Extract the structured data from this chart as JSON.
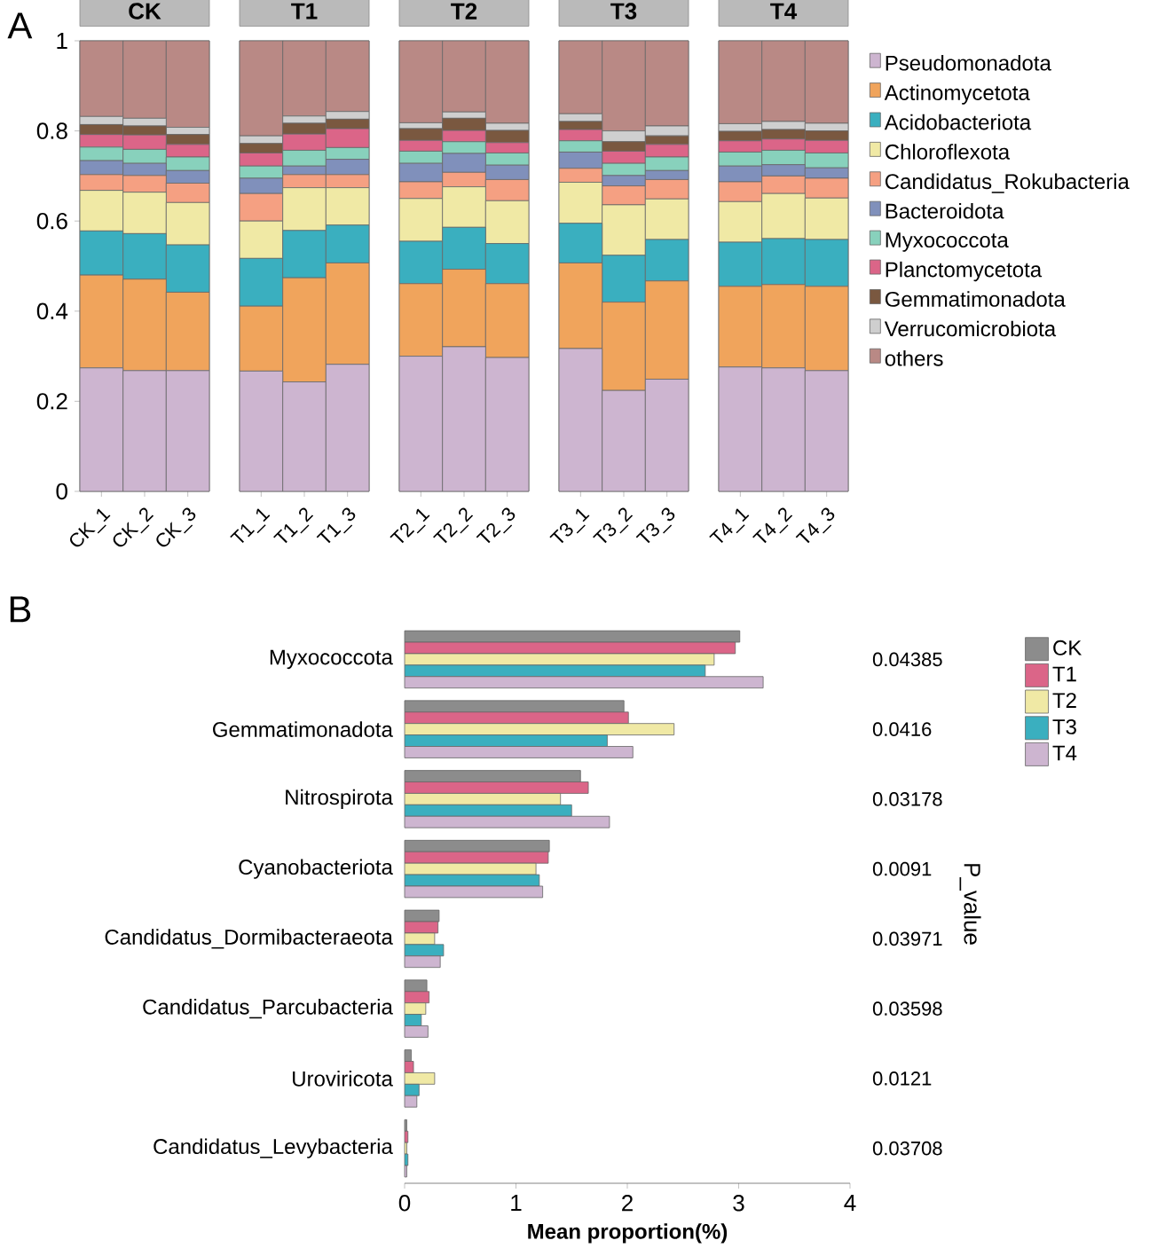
{
  "chart_data": [
    {
      "type": "bar",
      "stacked": true,
      "title": "CK",
      "annotations": [
        "A"
      ],
      "categories": [
        "CK_1",
        "CK_2",
        "CK_3"
      ],
      "ylim": [
        0,
        1
      ],
      "yticks": [
        0,
        0.2,
        0.4,
        0.6,
        0.8,
        1
      ],
      "series": [
        {
          "color": "#cdb5d0",
          "values": [
            0.274,
            0.268,
            0.268
          ]
        },
        {
          "color": "#f0a45c",
          "values": [
            0.206,
            0.203,
            0.174
          ]
        },
        {
          "color": "#3aafbf",
          "values": [
            0.098,
            0.101,
            0.105
          ]
        },
        {
          "color": "#f0e9a5",
          "values": [
            0.09,
            0.092,
            0.094
          ]
        },
        {
          "color": "#f5a082",
          "values": [
            0.035,
            0.037,
            0.043
          ]
        },
        {
          "color": "#8090bb",
          "values": [
            0.031,
            0.027,
            0.028
          ]
        },
        {
          "color": "#88d1bc",
          "values": [
            0.03,
            0.031,
            0.03
          ]
        },
        {
          "color": "#db6588",
          "values": [
            0.028,
            0.032,
            0.028
          ]
        },
        {
          "color": "#7a5840",
          "values": [
            0.022,
            0.02,
            0.022
          ]
        },
        {
          "color": "#cfcfcf",
          "values": [
            0.018,
            0.017,
            0.016
          ]
        },
        {
          "color": "#b98985",
          "values": [
            0.168,
            0.172,
            0.192
          ]
        }
      ]
    },
    {
      "type": "bar",
      "stacked": true,
      "title": "T1",
      "categories": [
        "T1_1",
        "T1_2",
        "T1_3"
      ],
      "ylim": [
        0,
        1
      ],
      "tick_labels": "x",
      "series": [
        {
          "color": "#cdb5d0",
          "values": [
            0.267,
            0.243,
            0.282
          ]
        },
        {
          "color": "#f0a45c",
          "values": [
            0.144,
            0.231,
            0.225
          ]
        },
        {
          "color": "#3aafbf",
          "values": [
            0.106,
            0.105,
            0.084
          ]
        },
        {
          "color": "#f0e9a5",
          "values": [
            0.083,
            0.095,
            0.083
          ]
        },
        {
          "color": "#f5a082",
          "values": [
            0.061,
            0.029,
            0.029
          ]
        },
        {
          "color": "#8090bb",
          "values": [
            0.034,
            0.019,
            0.034
          ]
        },
        {
          "color": "#88d1bc",
          "values": [
            0.027,
            0.035,
            0.026
          ]
        },
        {
          "color": "#db6588",
          "values": [
            0.029,
            0.036,
            0.042
          ]
        },
        {
          "color": "#7a5840",
          "values": [
            0.021,
            0.024,
            0.021
          ]
        },
        {
          "color": "#cfcfcf",
          "values": [
            0.017,
            0.016,
            0.017
          ]
        },
        {
          "color": "#b98985",
          "values": [
            0.211,
            0.167,
            0.157
          ]
        }
      ]
    },
    {
      "type": "bar",
      "stacked": true,
      "title": "T2",
      "categories": [
        "T2_1",
        "T2_2",
        "T2_3"
      ],
      "ylim": [
        0,
        1
      ],
      "tick_labels": "x",
      "series": [
        {
          "color": "#cdb5d0",
          "values": [
            0.3,
            0.321,
            0.297
          ]
        },
        {
          "color": "#f0a45c",
          "values": [
            0.161,
            0.172,
            0.164
          ]
        },
        {
          "color": "#3aafbf",
          "values": [
            0.094,
            0.093,
            0.089
          ]
        },
        {
          "color": "#f0e9a5",
          "values": [
            0.095,
            0.09,
            0.095
          ]
        },
        {
          "color": "#f5a082",
          "values": [
            0.037,
            0.032,
            0.047
          ]
        },
        {
          "color": "#8090bb",
          "values": [
            0.041,
            0.042,
            0.032
          ]
        },
        {
          "color": "#88d1bc",
          "values": [
            0.027,
            0.026,
            0.027
          ]
        },
        {
          "color": "#db6588",
          "values": [
            0.024,
            0.025,
            0.023
          ]
        },
        {
          "color": "#7a5840",
          "values": [
            0.026,
            0.027,
            0.027
          ]
        },
        {
          "color": "#cfcfcf",
          "values": [
            0.013,
            0.014,
            0.016
          ]
        },
        {
          "color": "#b98985",
          "values": [
            0.182,
            0.158,
            0.183
          ]
        }
      ]
    },
    {
      "type": "bar",
      "stacked": true,
      "title": "T3",
      "categories": [
        "T3_1",
        "T3_2",
        "T3_3"
      ],
      "ylim": [
        0,
        1
      ],
      "tick_labels": "x",
      "series": [
        {
          "color": "#cdb5d0",
          "values": [
            0.317,
            0.224,
            0.249
          ]
        },
        {
          "color": "#f0a45c",
          "values": [
            0.19,
            0.196,
            0.218
          ]
        },
        {
          "color": "#3aafbf",
          "values": [
            0.088,
            0.104,
            0.092
          ]
        },
        {
          "color": "#f0e9a5",
          "values": [
            0.091,
            0.112,
            0.09
          ]
        },
        {
          "color": "#f5a082",
          "values": [
            0.031,
            0.042,
            0.043
          ]
        },
        {
          "color": "#8090bb",
          "values": [
            0.036,
            0.023,
            0.02
          ]
        },
        {
          "color": "#88d1bc",
          "values": [
            0.025,
            0.027,
            0.03
          ]
        },
        {
          "color": "#db6588",
          "values": [
            0.025,
            0.027,
            0.028
          ]
        },
        {
          "color": "#7a5840",
          "values": [
            0.018,
            0.021,
            0.019
          ]
        },
        {
          "color": "#cfcfcf",
          "values": [
            0.017,
            0.024,
            0.022
          ]
        },
        {
          "color": "#b98985",
          "values": [
            0.162,
            0.2,
            0.189
          ]
        }
      ]
    },
    {
      "type": "bar",
      "stacked": true,
      "title": "T4",
      "categories": [
        "T4_1",
        "T4_2",
        "T4_3"
      ],
      "ylim": [
        0,
        1
      ],
      "tick_labels": "x",
      "legend": "right",
      "series": [
        {
          "name": "Pseudomonadota",
          "color": "#cdb5d0",
          "values": [
            0.276,
            0.274,
            0.268
          ]
        },
        {
          "name": "Actinomycetota",
          "color": "#f0a45c",
          "values": [
            0.179,
            0.185,
            0.187
          ]
        },
        {
          "name": "Acidobacteriota",
          "color": "#3aafbf",
          "values": [
            0.098,
            0.102,
            0.104
          ]
        },
        {
          "name": "Chloroflexota",
          "color": "#f0e9a5",
          "values": [
            0.09,
            0.1,
            0.092
          ]
        },
        {
          "name": "Candidatus_Rokubacteria",
          "color": "#f5a082",
          "values": [
            0.044,
            0.039,
            0.044
          ]
        },
        {
          "name": "Bacteroidota",
          "color": "#8090bb",
          "values": [
            0.035,
            0.025,
            0.023
          ]
        },
        {
          "name": "Myxococcota",
          "color": "#88d1bc",
          "values": [
            0.031,
            0.032,
            0.033
          ]
        },
        {
          "name": "Planctomycetota",
          "color": "#db6588",
          "values": [
            0.025,
            0.025,
            0.028
          ]
        },
        {
          "name": "Gemmatimonadota",
          "color": "#7a5840",
          "values": [
            0.021,
            0.021,
            0.021
          ]
        },
        {
          "name": "Verrucomicrobiota",
          "color": "#cfcfcf",
          "values": [
            0.017,
            0.018,
            0.017
          ]
        },
        {
          "name": "others",
          "color": "#b98985",
          "values": [
            0.184,
            0.179,
            0.183
          ]
        }
      ]
    },
    {
      "type": "bar",
      "orientation": "horizontal",
      "categories": [
        "Myxococcota",
        "Gemmatimonadota",
        "Nitrospirota",
        "Cyanobacteriota",
        "Candidatus_Dormibacteraeota",
        "Candidatus_Parcubacteria",
        "Uroviricota",
        "Candidatus_Levybacteria"
      ],
      "xlim": [
        0,
        4
      ],
      "xticks": [
        0,
        1,
        2,
        3,
        4
      ],
      "xlabel": "Mean proportion(%)",
      "y2label": "P_value",
      "legend": "right",
      "series": [
        {
          "name": "CK",
          "color": "#8c8c8c",
          "values": [
            3.01,
            1.97,
            1.58,
            1.3,
            0.31,
            0.2,
            0.06,
            0.02
          ]
        },
        {
          "name": "T1",
          "color": "#db6588",
          "values": [
            2.97,
            2.01,
            1.65,
            1.29,
            0.3,
            0.22,
            0.08,
            0.03
          ]
        },
        {
          "name": "T2",
          "color": "#f0e9a5",
          "values": [
            2.78,
            2.42,
            1.4,
            1.18,
            0.27,
            0.19,
            0.27,
            0.02
          ]
        },
        {
          "name": "T3",
          "color": "#3aafbf",
          "values": [
            2.7,
            1.82,
            1.5,
            1.21,
            0.35,
            0.15,
            0.13,
            0.03
          ]
        },
        {
          "name": "T4",
          "color": "#cdb5d0",
          "values": [
            3.22,
            2.05,
            1.84,
            1.24,
            0.32,
            0.21,
            0.11,
            0.02
          ]
        }
      ],
      "annotations": [
        "B",
        "0.04385",
        "0.0416",
        "0.03178",
        "0.0091",
        "0.03971",
        "0.03598",
        "0.0121",
        "0.03708"
      ]
    }
  ]
}
